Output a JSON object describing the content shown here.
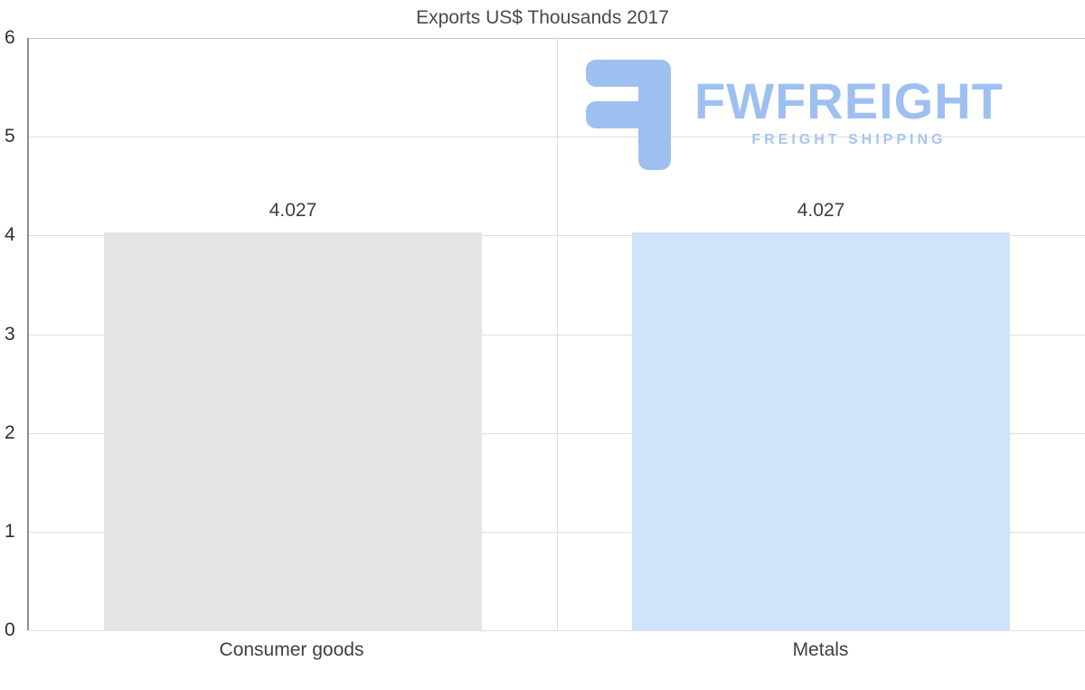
{
  "chart_data": {
    "type": "bar",
    "title": "Exports US$ Thousands 2017",
    "categories": [
      "Consumer goods",
      "Metals"
    ],
    "values": [
      4.027,
      4.027
    ],
    "value_labels": [
      "4.027",
      "4.027"
    ],
    "bar_colors": [
      "#e5e5e5",
      "#cfe3fa"
    ],
    "xlabel": "",
    "ylabel": "",
    "ylim": [
      0,
      6
    ],
    "yticks": [
      0,
      1,
      2,
      3,
      4,
      5,
      6
    ],
    "grid": true,
    "legend": "none",
    "bar_width_fraction": 0.715
  },
  "watermark": {
    "brand": "FWFREIGHT",
    "tagline": "FREIGHT SHIPPING",
    "color": "#9ec0f0",
    "icon": "fwfreight-logo-icon"
  }
}
